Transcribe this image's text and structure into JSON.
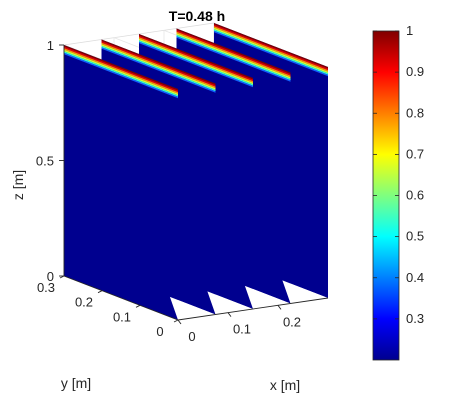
{
  "chart_data": {
    "type": "heatmap",
    "title": "T=0.48 h",
    "xlabel": "x [m]",
    "ylabel": "y [m]",
    "zlabel": "z [m]",
    "xlim": [
      0,
      0.3
    ],
    "ylim": [
      0,
      0.3
    ],
    "zlim": [
      0,
      1
    ],
    "x_ticks": [
      "0",
      "0.1",
      "0.2"
    ],
    "y_ticks": [
      "0",
      "0.1",
      "0.2",
      "0.3"
    ],
    "z_ticks": [
      "0",
      "0.5",
      "1"
    ],
    "plate_x_positions": [
      0,
      0.075,
      0.15,
      0.225,
      0.3
    ],
    "field_description_values": {
      "background_value": 0.22,
      "top_band_value": 1.0,
      "band_thickness_z": 0.04
    },
    "colorbar": {
      "colormap": "jet",
      "range": [
        0.2,
        1.0
      ],
      "ticks": [
        "0.3",
        "0.4",
        "0.5",
        "0.6",
        "0.7",
        "0.8",
        "0.9",
        "1"
      ],
      "placement": "right"
    },
    "grid": true
  }
}
